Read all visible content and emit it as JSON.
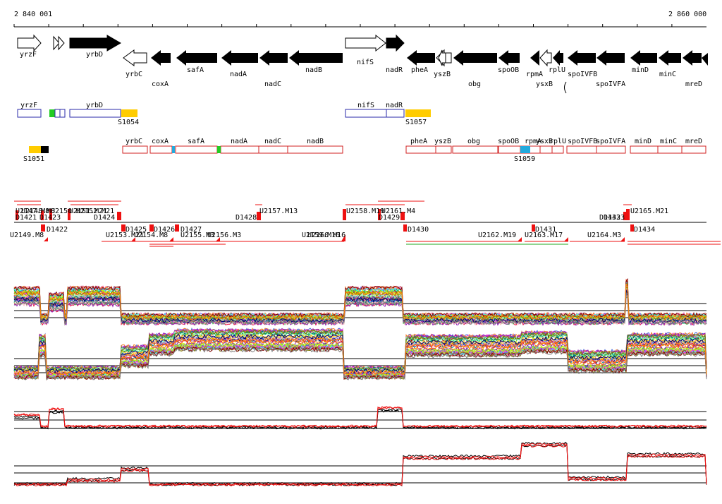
{
  "coordinates": {
    "start": "2 840 001",
    "end": "2 860 000"
  },
  "colors": {
    "filled_gene": "#000000",
    "open_gene": "#000000",
    "box_blue": "#2a2aa8",
    "box_red": "#d02020",
    "marker_yellow": "#ffcc00",
    "marker_green": "#22cc22",
    "marker_cyan": "#22aadd",
    "tu_red": "#ee1111",
    "tu_green": "#22aa22",
    "line_black": "#000000"
  },
  "genes_top": [
    {
      "label": "yrzF"
    },
    {
      "label": "yrbD"
    },
    {
      "label": "nifS"
    },
    {
      "label": "pheA"
    },
    {
      "label": "yszB"
    },
    {
      "label": "spoOB"
    },
    {
      "label": "rplU"
    },
    {
      "label": "spoIVFB"
    },
    {
      "label": "minD"
    },
    {
      "label": "mreD"
    }
  ],
  "genes_bottom": [
    {
      "label": "yrbC"
    },
    {
      "label": "coxA"
    },
    {
      "label": "safA"
    },
    {
      "label": "nadA"
    },
    {
      "label": "nadC"
    },
    {
      "label": "nadB"
    },
    {
      "label": "nadR"
    },
    {
      "label": "obg"
    },
    {
      "label": "rpmA"
    },
    {
      "label": "ysxB"
    },
    {
      "label": "spoIVFA"
    },
    {
      "label": "minC"
    }
  ],
  "features_blue": [
    {
      "label": "yrzF"
    },
    {
      "label": "yrbD"
    },
    {
      "label": "nifS"
    },
    {
      "label": "nadR"
    }
  ],
  "features_red": [
    {
      "label": "yrbC"
    },
    {
      "label": "coxA"
    },
    {
      "label": "safA"
    },
    {
      "label": "nadA"
    },
    {
      "label": "nadC"
    },
    {
      "label": "nadB"
    },
    {
      "label": "pheA"
    },
    {
      "label": "yszB"
    },
    {
      "label": "obg"
    },
    {
      "label": "spoOB"
    },
    {
      "label": "rpmA"
    },
    {
      "label": "ysxB"
    },
    {
      "label": "rplU"
    },
    {
      "label": "spoIVFB"
    },
    {
      "label": "spoIVFA"
    },
    {
      "label": "minD"
    },
    {
      "label": "minC"
    },
    {
      "label": "mreD"
    }
  ],
  "segments": [
    {
      "label": "S1051"
    },
    {
      "label": "S1054"
    },
    {
      "label": "S1057"
    },
    {
      "label": "S1059"
    }
  ],
  "tu_labels_top": [
    {
      "label": "U2147.M8"
    },
    {
      "label": "U2148.M8"
    },
    {
      "label": "D1421"
    },
    {
      "label": "D1423"
    },
    {
      "label": "U2150.M21"
    },
    {
      "label": "U2151.M21"
    },
    {
      "label": "U2152.M21"
    },
    {
      "label": "D1424"
    },
    {
      "label": "D1428"
    },
    {
      "label": "U2157.M13"
    },
    {
      "label": "U2158.M19"
    },
    {
      "label": "U2161.M4"
    },
    {
      "label": "D1429"
    },
    {
      "label": "D1432"
    },
    {
      "label": "D1433"
    },
    {
      "label": "U2165.M21"
    }
  ],
  "tu_labels_bottom": [
    {
      "label": "U2149.M8"
    },
    {
      "label": "D1422"
    },
    {
      "label": "D1425"
    },
    {
      "label": "D1426"
    },
    {
      "label": "D1427"
    },
    {
      "label": "U2153.M21"
    },
    {
      "label": "U2154.M8"
    },
    {
      "label": "U2155.M3"
    },
    {
      "label": "U2156.M3"
    },
    {
      "label": "U2159.M16"
    },
    {
      "label": "U2160.M16"
    },
    {
      "label": "D1430"
    },
    {
      "label": "U2162.M19"
    },
    {
      "label": "D1431"
    },
    {
      "label": "U2163.M17"
    },
    {
      "label": "U2164.M3"
    },
    {
      "label": "D1434"
    }
  ]
}
